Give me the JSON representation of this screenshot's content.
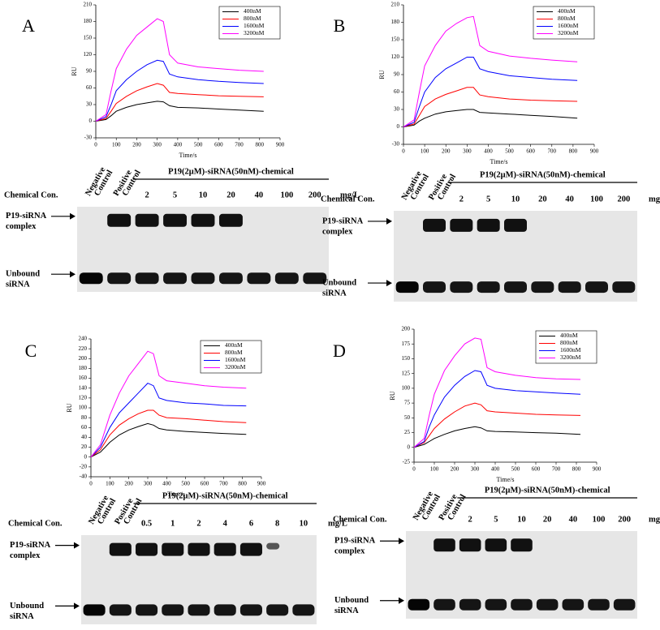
{
  "chart_data": [
    {
      "type": "line",
      "panel_label": "A",
      "xlabel": "Time/s",
      "ylabel": "RU",
      "x": [
        0,
        50,
        75,
        100,
        150,
        200,
        250,
        300,
        330,
        360,
        400,
        500,
        600,
        700,
        820
      ],
      "xlim": [
        0,
        900
      ],
      "xticks": [
        0,
        100,
        200,
        300,
        400,
        500,
        600,
        700,
        800,
        900
      ],
      "ylim": [
        -30,
        210
      ],
      "yticks": [
        -30,
        0,
        30,
        60,
        90,
        120,
        150,
        180,
        210
      ],
      "series": [
        {
          "name": "400nM",
          "color": "#000000",
          "values": [
            0,
            3,
            10,
            18,
            25,
            30,
            33,
            36,
            35,
            28,
            25,
            24,
            22,
            20,
            18
          ]
        },
        {
          "name": "800nM",
          "color": "#ff0000",
          "values": [
            0,
            5,
            18,
            32,
            45,
            55,
            62,
            68,
            65,
            52,
            50,
            48,
            46,
            45,
            44
          ]
        },
        {
          "name": "1600nM",
          "color": "#0000ff",
          "values": [
            0,
            8,
            30,
            55,
            75,
            90,
            102,
            110,
            108,
            85,
            80,
            75,
            72,
            70,
            68
          ]
        },
        {
          "name": "3200nM",
          "color": "#ff00ff",
          "values": [
            0,
            12,
            55,
            95,
            130,
            155,
            170,
            185,
            180,
            120,
            105,
            98,
            95,
            92,
            90
          ]
        }
      ]
    },
    {
      "type": "line",
      "panel_label": "B",
      "xlabel": "Time/s",
      "ylabel": "RU",
      "x": [
        0,
        50,
        75,
        100,
        150,
        200,
        250,
        300,
        330,
        360,
        400,
        500,
        600,
        700,
        820
      ],
      "xlim": [
        0,
        900
      ],
      "xticks": [
        0,
        100,
        200,
        300,
        400,
        500,
        600,
        700,
        800,
        900
      ],
      "ylim": [
        -30,
        210
      ],
      "yticks": [
        -30,
        0,
        30,
        60,
        90,
        120,
        150,
        180,
        210
      ],
      "series": [
        {
          "name": "400nM",
          "color": "#000000",
          "values": [
            0,
            3,
            10,
            15,
            22,
            26,
            28,
            30,
            30,
            25,
            24,
            22,
            20,
            18,
            15
          ]
        },
        {
          "name": "800nM",
          "color": "#ff0000",
          "values": [
            0,
            5,
            20,
            35,
            48,
            56,
            62,
            68,
            68,
            55,
            52,
            48,
            46,
            45,
            44
          ]
        },
        {
          "name": "1600nM",
          "color": "#0000ff",
          "values": [
            0,
            8,
            35,
            60,
            85,
            100,
            110,
            120,
            120,
            100,
            95,
            88,
            85,
            82,
            80
          ]
        },
        {
          "name": "3200nM",
          "color": "#ff00ff",
          "values": [
            0,
            12,
            60,
            105,
            140,
            165,
            178,
            188,
            190,
            140,
            130,
            122,
            118,
            115,
            112
          ]
        }
      ]
    },
    {
      "type": "line",
      "panel_label": "C",
      "xlabel": "Time/s",
      "ylabel": "RU",
      "x": [
        0,
        50,
        75,
        100,
        150,
        200,
        250,
        300,
        330,
        360,
        400,
        500,
        600,
        700,
        820
      ],
      "xlim": [
        0,
        900
      ],
      "xticks": [
        0,
        100,
        200,
        300,
        400,
        500,
        600,
        700,
        800,
        900
      ],
      "ylim": [
        -40,
        240
      ],
      "yticks": [
        -40,
        -20,
        0,
        20,
        40,
        60,
        80,
        100,
        120,
        140,
        160,
        180,
        200,
        220,
        240
      ],
      "series": [
        {
          "name": "400nM",
          "color": "#000000",
          "values": [
            0,
            10,
            20,
            30,
            45,
            55,
            62,
            68,
            65,
            58,
            55,
            52,
            50,
            48,
            46
          ]
        },
        {
          "name": "800nM",
          "color": "#ff0000",
          "values": [
            0,
            15,
            30,
            45,
            65,
            78,
            88,
            95,
            95,
            85,
            80,
            78,
            75,
            72,
            70
          ]
        },
        {
          "name": "1600nM",
          "color": "#0000ff",
          "values": [
            0,
            20,
            40,
            60,
            90,
            110,
            130,
            150,
            145,
            120,
            115,
            110,
            108,
            105,
            104
          ]
        },
        {
          "name": "3200nM",
          "color": "#ff00ff",
          "values": [
            0,
            25,
            55,
            85,
            130,
            165,
            190,
            215,
            210,
            165,
            155,
            150,
            145,
            142,
            140
          ]
        }
      ]
    },
    {
      "type": "line",
      "panel_label": "D",
      "xlabel": "Time/s",
      "ylabel": "RU",
      "x": [
        0,
        50,
        75,
        100,
        150,
        200,
        250,
        300,
        330,
        360,
        400,
        500,
        600,
        700,
        820
      ],
      "xlim": [
        0,
        900
      ],
      "xticks": [
        0,
        100,
        200,
        300,
        400,
        500,
        600,
        700,
        800,
        900
      ],
      "ylim": [
        -25,
        200
      ],
      "yticks": [
        -25,
        0,
        25,
        50,
        75,
        100,
        125,
        150,
        175,
        200
      ],
      "series": [
        {
          "name": "400nM",
          "color": "#000000",
          "values": [
            0,
            5,
            10,
            15,
            22,
            28,
            32,
            35,
            33,
            28,
            27,
            26,
            25,
            24,
            22
          ]
        },
        {
          "name": "800nM",
          "color": "#ff0000",
          "values": [
            0,
            8,
            20,
            32,
            48,
            60,
            70,
            75,
            72,
            62,
            60,
            58,
            56,
            55,
            54
          ]
        },
        {
          "name": "1600nM",
          "color": "#0000ff",
          "values": [
            0,
            10,
            35,
            55,
            85,
            105,
            120,
            130,
            128,
            105,
            100,
            96,
            94,
            92,
            90
          ]
        },
        {
          "name": "3200nM",
          "color": "#ff00ff",
          "values": [
            0,
            15,
            55,
            90,
            130,
            155,
            175,
            185,
            183,
            135,
            128,
            122,
            118,
            116,
            115
          ]
        }
      ]
    }
  ],
  "gels": [
    {
      "header": "P19(2μM)-siRNA(50nM)-chemical",
      "row_label": "Chemical Con.",
      "controls": [
        [
          "Negative",
          "Control"
        ],
        [
          "Positive",
          "Control"
        ]
      ],
      "concentrations": [
        2,
        5,
        10,
        20,
        40,
        100,
        200
      ],
      "unit": "mg/L",
      "complex_label": [
        "P19-siRNA",
        "complex"
      ],
      "unbound_label": [
        "Unbound",
        "siRNA"
      ]
    },
    {
      "header": "P19(2μM)-siRNA(50nM)-chemical",
      "row_label": "Chemical Con.",
      "controls": [
        [
          "Negative",
          "Control"
        ],
        [
          "Positive",
          "Control"
        ]
      ],
      "concentrations": [
        2,
        5,
        10,
        20,
        40,
        100,
        200
      ],
      "unit": "mg/L",
      "complex_label": [
        "P19-siRNA",
        "complex"
      ],
      "unbound_label": [
        "Unbound",
        "siRNA"
      ]
    },
    {
      "header": "P19(2μM)-siRNA(50nM)-chemical",
      "row_label": "Chemical Con.",
      "controls": [
        [
          "Negative",
          "Control"
        ],
        [
          "Positive",
          "Control"
        ]
      ],
      "concentrations": [
        0.5,
        1,
        2,
        4,
        6,
        8,
        10
      ],
      "unit": "mg/L",
      "complex_label": [
        "P19-siRNA",
        "complex"
      ],
      "unbound_label": [
        "Unbound",
        "siRNA"
      ]
    },
    {
      "header": "P19(2μM)-siRNA(50nM)-chemical",
      "row_label": "Chemical Con.",
      "controls": [
        [
          "Negative",
          "Control"
        ],
        [
          "Positive",
          "Control"
        ]
      ],
      "concentrations": [
        2,
        5,
        10,
        20,
        40,
        100,
        200
      ],
      "unit": "mg/L",
      "complex_label": [
        "P19-siRNA",
        "complex"
      ],
      "unbound_label": [
        "Unbound",
        "siRNA"
      ]
    }
  ]
}
